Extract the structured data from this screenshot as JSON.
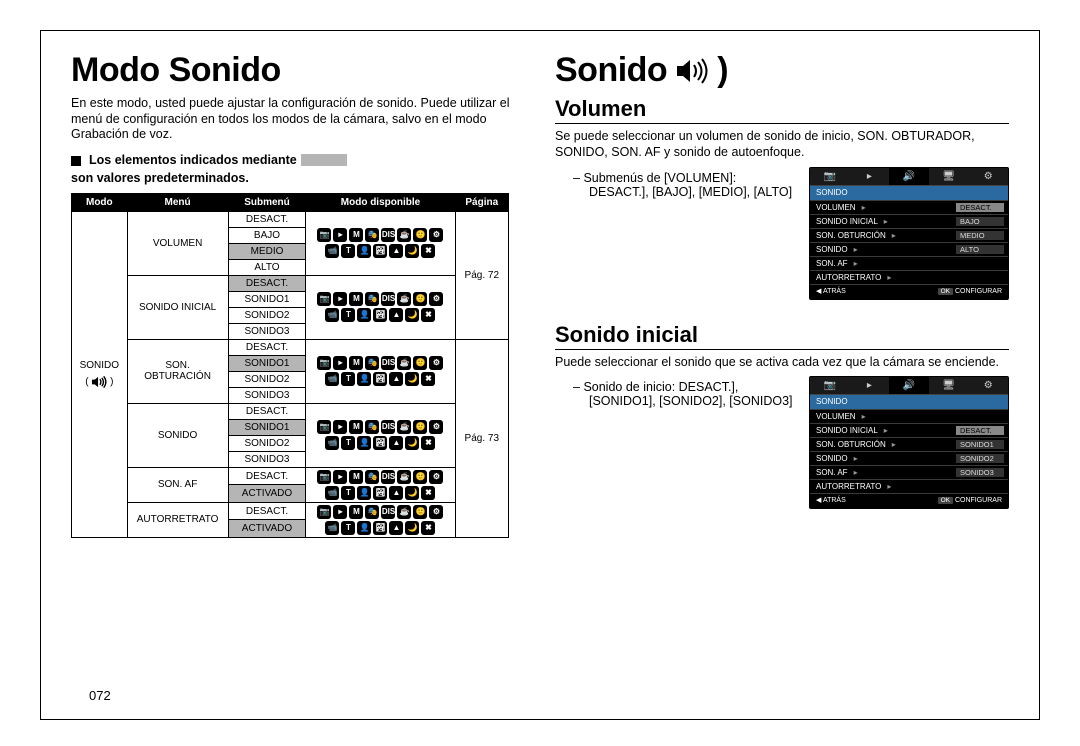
{
  "page_number": "072",
  "colors": {
    "default_highlight": "#b5b5b5",
    "lcd_head_bg": "#2a6aa0",
    "black": "#000000",
    "white": "#ffffff"
  },
  "left": {
    "title": "Modo Sonido",
    "intro": "En este modo, usted puede ajustar la configuración de sonido. Puede utilizar el menú de configuración en todos los modos de la cámara, salvo en el modo Grabación de voz.",
    "defaults_note_pre": "Los elementos indicados mediante",
    "defaults_note_post": "son valores predeterminados.",
    "table": {
      "headers": [
        "Modo",
        "Menú",
        "Submenú",
        "Modo disponible",
        "Página"
      ],
      "modo_label": "SONIDO",
      "groups": [
        {
          "menu": "VOLUMEN",
          "sub": [
            {
              "t": "DESACT.",
              "d": false
            },
            {
              "t": "BAJO",
              "d": false
            },
            {
              "t": "MEDIO",
              "d": true
            },
            {
              "t": "ALTO",
              "d": false
            }
          ],
          "page": "Pág. 72",
          "icons": "full"
        },
        {
          "menu": "SONIDO INICIAL",
          "sub": [
            {
              "t": "DESACT.",
              "d": true
            },
            {
              "t": "SONIDO1",
              "d": false
            },
            {
              "t": "SONIDO2",
              "d": false
            },
            {
              "t": "SONIDO3",
              "d": false
            }
          ],
          "icons": "full"
        },
        {
          "menu": "SON. OBTURACIÓN",
          "sub": [
            {
              "t": "DESACT.",
              "d": false
            },
            {
              "t": "SONIDO1",
              "d": true
            },
            {
              "t": "SONIDO2",
              "d": false
            },
            {
              "t": "SONIDO3",
              "d": false
            }
          ],
          "icons": "full"
        },
        {
          "menu": "SONIDO",
          "sub": [
            {
              "t": "DESACT.",
              "d": false
            },
            {
              "t": "SONIDO1",
              "d": true
            },
            {
              "t": "SONIDO2",
              "d": false
            },
            {
              "t": "SONIDO3",
              "d": false
            }
          ],
          "page": "Pág. 73",
          "icons": "full"
        },
        {
          "menu": "SON. AF",
          "sub": [
            {
              "t": "DESACT.",
              "d": false
            },
            {
              "t": "ACTIVADO",
              "d": true
            }
          ],
          "icons": "full"
        },
        {
          "menu": "AUTORRETRATO",
          "sub": [
            {
              "t": "DESACT.",
              "d": false
            },
            {
              "t": "ACTIVADO",
              "d": true
            }
          ],
          "icons": "full"
        }
      ],
      "mode_icons_full": [
        "📷",
        "▸",
        "M",
        "🎭",
        "DIS",
        "☕",
        "🙂",
        "⚙",
        "📹",
        "T",
        "👤",
        "🏞",
        "▲",
        "🌙",
        "✖"
      ]
    }
  },
  "right": {
    "title": "Sonido",
    "sections": [
      {
        "heading": "Volumen",
        "body": "Se puede seleccionar un volumen de sonido de inicio, SON. OBTURADOR, SONIDO, SON. AF y sonido de autoenfoque.",
        "bullet_lead": "Submenús de [VOLUMEN]:",
        "bullet_values": "DESACT.], [BAJO], [MEDIO], [ALTO]",
        "lcd": {
          "head": "SONIDO",
          "rows": [
            {
              "label": "VOLUMEN",
              "val": "DESACT.",
              "sel": true
            },
            {
              "label": "SONIDO INICIAL",
              "val": "BAJO"
            },
            {
              "label": "SON. OBTURCIÓN",
              "val": "MEDIO"
            },
            {
              "label": "SONIDO",
              "val": "ALTO"
            },
            {
              "label": "SON. AF",
              "val": ""
            },
            {
              "label": "AUTORRETRATO",
              "val": ""
            }
          ],
          "back": "ATRÁS",
          "ok": "OK",
          "set": "CONFIGURAR"
        }
      },
      {
        "heading": "Sonido inicial",
        "body": "Puede seleccionar el sonido que se activa cada vez que la cámara se enciende.",
        "bullet_lead": "Sonido de inicio: DESACT.],",
        "bullet_values": "[SONIDO1], [SONIDO2], [SONIDO3]",
        "lcd": {
          "head": "SONIDO",
          "rows": [
            {
              "label": "VOLUMEN",
              "val": ""
            },
            {
              "label": "SONIDO INICIAL",
              "val": "DESACT.",
              "sel": true
            },
            {
              "label": "SON. OBTURCIÓN",
              "val": "SONIDO1"
            },
            {
              "label": "SONIDO",
              "val": "SONIDO2"
            },
            {
              "label": "SON. AF",
              "val": "SONIDO3"
            },
            {
              "label": "AUTORRETRATO",
              "val": ""
            }
          ],
          "back": "ATRÁS",
          "ok": "OK",
          "set": "CONFIGURAR"
        }
      }
    ]
  }
}
